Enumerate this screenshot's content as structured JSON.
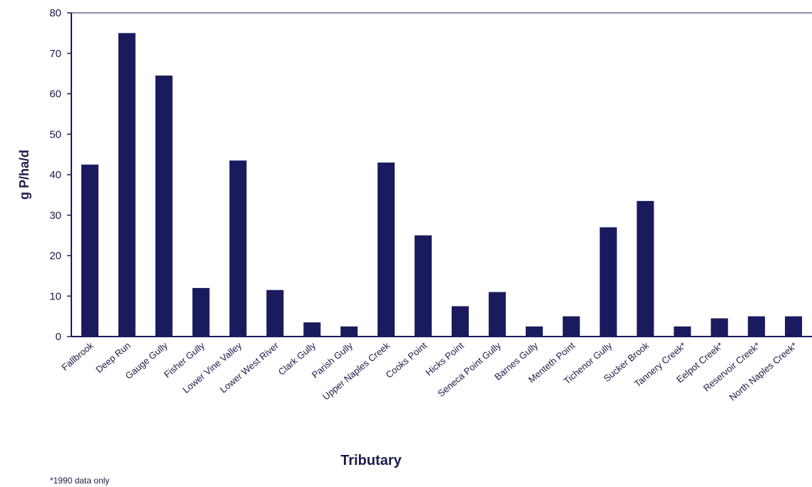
{
  "chart_data": {
    "type": "bar",
    "title": "",
    "xlabel": "Tributary",
    "ylabel": "g P/ha/d",
    "ylim": [
      0,
      80
    ],
    "yticks": [
      0,
      10,
      20,
      30,
      40,
      50,
      60,
      70,
      80
    ],
    "grid": false,
    "legend": "none",
    "bar_color": "#1a1a5e",
    "categories": [
      "Fallbrook",
      "Deep Run",
      "Gauge Gully",
      "Fisher Gully",
      "Lower Vine Valley",
      "Lower West River",
      "Clark Gully",
      "Parish Gully",
      "Upper Naples Creek",
      "Cooks Point",
      "Hicks Point",
      "Seneca Point Gully",
      "Barnes Gully",
      "Menteth Point",
      "Tichenor Gully",
      "Sucker Brook",
      "Tannery Creek*",
      "Eelpot Creek*",
      "Reservoir Creek*",
      "North Naples Creek*"
    ],
    "values": [
      42.5,
      75,
      64.5,
      12,
      43.5,
      11.5,
      3.5,
      2.5,
      43,
      25,
      7.5,
      11,
      2.5,
      5,
      27,
      33.5,
      2.5,
      4.5,
      5,
      5
    ],
    "footnote": "*1990 data only"
  }
}
